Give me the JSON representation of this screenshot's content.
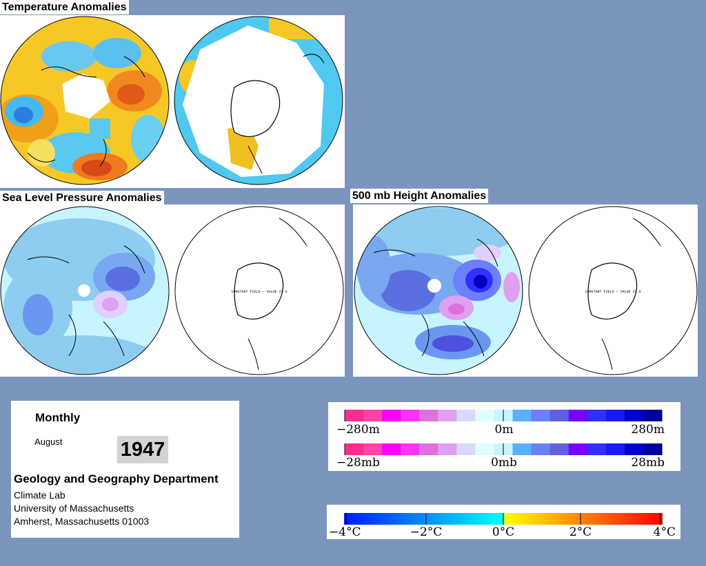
{
  "titles": {
    "temperature": "Temperature Anomalies",
    "slp": "Sea Level Pressure Anomalies",
    "height": "500 mb Height Anomalies"
  },
  "map_note": "CONSTANT FIELD — VALUE IS 0",
  "info": {
    "heading": "Monthly",
    "month": "August",
    "year": "1947",
    "department": "Geology and Geography Department",
    "lab": "Climate Lab",
    "university": "University of Massachusetts",
    "address": "Amherst, Massachusetts 01003"
  },
  "legend_height": {
    "left": "−280m",
    "center": "0m",
    "right": "280m"
  },
  "legend_pressure": {
    "left": "−28mb",
    "center": "0mb",
    "right": "28mb"
  },
  "legend_temp": {
    "t0": "−4°C",
    "t1": "−2°C",
    "t2": "0°C",
    "t3": "2°C",
    "t4": "4°C"
  },
  "colors": {
    "background": "#7b95bd",
    "anomaly_scale": [
      "#ff2d8e",
      "#ff44aa",
      "#ff00ff",
      "#ff33ff",
      "#e070e0",
      "#e0a0f0",
      "#d8d8ff",
      "#e0ffff",
      "#c8f4ff",
      "#5ab0ff",
      "#6a80ff",
      "#6060e0",
      "#7a00ff",
      "#3030ff",
      "#1a1aff",
      "#0000d0",
      "#0000a0"
    ],
    "temp_cold": "#0018ff",
    "temp_zero": "#00ffff",
    "temp_warm_mid": "#ffff00",
    "temp_hot": "#ff0000"
  }
}
